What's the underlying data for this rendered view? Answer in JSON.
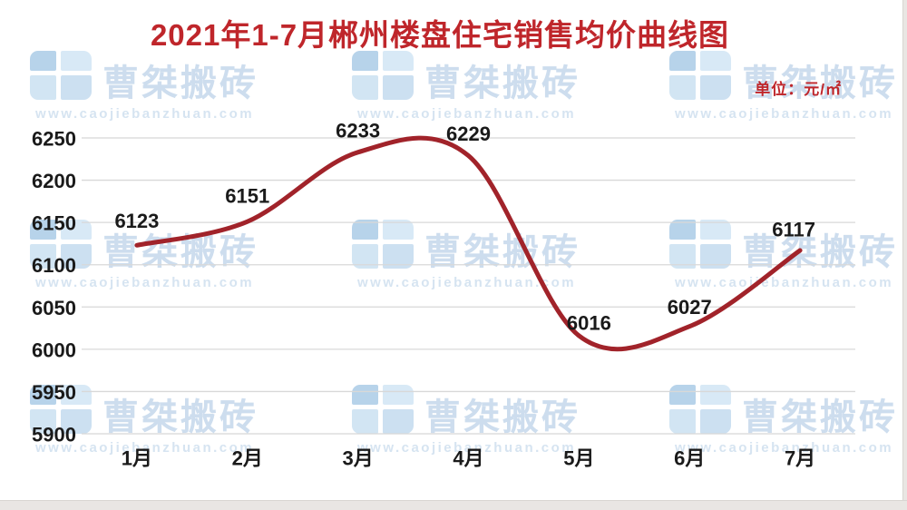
{
  "page": {
    "background_color": "#ffffff",
    "edge_color": "#e9e6e3"
  },
  "header": {
    "title": "2021年1-7月郴州楼盘住宅销售均价曲线图",
    "unit_label": "单位：元/㎡",
    "accent_color": "#bf262b"
  },
  "watermark": {
    "brand_name": "曹桀搬砖",
    "url": "www.caojiebanzhuan.com"
  },
  "chart_data": {
    "type": "line",
    "title": "2021年1-7月郴州楼盘住宅销售均价曲线图",
    "unit": "元/㎡",
    "categories": [
      "1月",
      "2月",
      "3月",
      "4月",
      "5月",
      "6月",
      "7月"
    ],
    "values": [
      6123,
      6151,
      6233,
      6229,
      6016,
      6027,
      6117
    ],
    "yticks": [
      6250,
      6200,
      6150,
      6100,
      6050,
      6000,
      5950,
      5900
    ],
    "ylim": [
      5900,
      6250
    ],
    "xlabel": "",
    "ylabel": "",
    "grid": "horizontal",
    "legend": "none",
    "smooth": true,
    "line_color": "#a1232a",
    "grid_color": "#d8d8d8",
    "label_color": "#1a1a1a"
  }
}
